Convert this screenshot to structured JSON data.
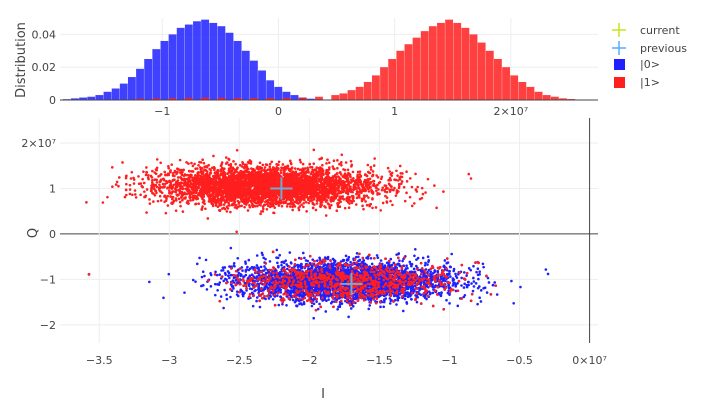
{
  "chart_data": [
    {
      "type": "bar",
      "role": "histogram",
      "ylabel": "Distribution",
      "xlim": [
        -18800000.0,
        27500000.0
      ],
      "ylim": [
        0,
        0.05
      ],
      "yticks": [
        0,
        0.02,
        0.04
      ],
      "ytick_labels": [
        "0",
        "0.02",
        "0.04"
      ],
      "xticks": [
        -10000000.0,
        0,
        10000000.0,
        20000000.0
      ],
      "xtick_labels": [
        "−1",
        "0",
        "1",
        "2×10⁷"
      ],
      "grid": true,
      "series": [
        {
          "name": "|0>",
          "color": "#1f1fff",
          "bins": [
            [
              -18200000.0,
              0.0005
            ],
            [
              -17500000.0,
              0.001
            ],
            [
              -16800000.0,
              0.0015
            ],
            [
              -16100000.0,
              0.002
            ],
            [
              -15400000.0,
              0.003
            ],
            [
              -14700000.0,
              0.005
            ],
            [
              -14000000.0,
              0.007
            ],
            [
              -13300000.0,
              0.01
            ],
            [
              -12600000.0,
              0.014
            ],
            [
              -11900000.0,
              0.019
            ],
            [
              -11200000.0,
              0.025
            ],
            [
              -10500000.0,
              0.031
            ],
            [
              -9800000.0,
              0.036
            ],
            [
              -9100000.0,
              0.04
            ],
            [
              -8400000.0,
              0.044
            ],
            [
              -7700000.0,
              0.046
            ],
            [
              -7000000.0,
              0.048
            ],
            [
              -6300000.0,
              0.049
            ],
            [
              -5600000.0,
              0.047
            ],
            [
              -4900000.0,
              0.045
            ],
            [
              -4200000.0,
              0.041
            ],
            [
              -3500000.0,
              0.036
            ],
            [
              -2800000.0,
              0.03
            ],
            [
              -2100000.0,
              0.024
            ],
            [
              -1400000.0,
              0.018
            ],
            [
              -700000.0,
              0.012
            ],
            [
              0.0,
              0.008
            ],
            [
              700000.0,
              0.005
            ],
            [
              1400000.0,
              0.003
            ],
            [
              2100000.0,
              0.0015
            ],
            [
              2800000.0,
              0.0008
            ],
            [
              3500000.0,
              0.0004
            ],
            [
              4200000.0,
              0.0002
            ]
          ]
        },
        {
          "name": "|1>",
          "color": "#ff1f1f",
          "bins": [
            [
              -11900000.0,
              0.0008
            ],
            [
              -10500000.0,
              0.001
            ],
            [
              -9100000.0,
              0.0012
            ],
            [
              -7700000.0,
              0.0014
            ],
            [
              -6300000.0,
              0.0015
            ],
            [
              -4900000.0,
              0.0014
            ],
            [
              -3500000.0,
              0.0012
            ],
            [
              -2100000.0,
              0.0012
            ],
            [
              -700000.0,
              0.0012
            ],
            [
              700000.0,
              0.0013
            ],
            [
              2100000.0,
              0.0015
            ],
            [
              3500000.0,
              0.002
            ],
            [
              4900000.0,
              0.003
            ],
            [
              5600000.0,
              0.004
            ],
            [
              6300000.0,
              0.006
            ],
            [
              7000000.0,
              0.008
            ],
            [
              7700000.0,
              0.011
            ],
            [
              8400000.0,
              0.015
            ],
            [
              9100000.0,
              0.02
            ],
            [
              9800000.0,
              0.025
            ],
            [
              10500000.0,
              0.03
            ],
            [
              11200000.0,
              0.034
            ],
            [
              11900000.0,
              0.038
            ],
            [
              12600000.0,
              0.042
            ],
            [
              13300000.0,
              0.045
            ],
            [
              14000000.0,
              0.047
            ],
            [
              14700000.0,
              0.049
            ],
            [
              15400000.0,
              0.047
            ],
            [
              16100000.0,
              0.044
            ],
            [
              16800000.0,
              0.04
            ],
            [
              17500000.0,
              0.035
            ],
            [
              18200000.0,
              0.03
            ],
            [
              18900000.0,
              0.025
            ],
            [
              19600000.0,
              0.02
            ],
            [
              20300000.0,
              0.015
            ],
            [
              21000000.0,
              0.011
            ],
            [
              21700000.0,
              0.008
            ],
            [
              22400000.0,
              0.005
            ],
            [
              23100000.0,
              0.003
            ],
            [
              23800000.0,
              0.002
            ],
            [
              24500000.0,
              0.001
            ],
            [
              25200000.0,
              0.0006
            ],
            [
              25900000.0,
              0.0003
            ]
          ]
        }
      ]
    },
    {
      "type": "scatter",
      "xlabel": "I",
      "ylabel": "Q",
      "xlim": [
        -37800000.0,
        600000.0
      ],
      "ylim": [
        -24000000.0,
        25500000.0
      ],
      "xticks": [
        -35000000.0,
        -30000000.0,
        -25000000.0,
        -20000000.0,
        -15000000.0,
        -10000000.0,
        -5000000.0,
        0
      ],
      "xtick_labels": [
        "−3.5",
        "−3",
        "−2.5",
        "−2",
        "−1.5",
        "−1",
        "−0.5",
        "0×10⁷"
      ],
      "yticks": [
        -20000000.0,
        -10000000.0,
        0,
        10000000.0,
        20000000.0
      ],
      "ytick_labels": [
        "−2",
        "−1",
        "0",
        "1",
        "2×10⁷"
      ],
      "grid": true,
      "series": [
        {
          "name": "|0>",
          "color": "#1f1fff",
          "distribution": {
            "center": [
              -17500000.0,
              -10500000.0
            ],
            "spread": [
              3800000.0,
              3800000.0
            ],
            "points": 4200
          }
        },
        {
          "name": "|1>",
          "color": "#ff1f1f",
          "distribution": {
            "center": [
              -23000000.0,
              10500000.0
            ],
            "spread": [
              3800000.0,
              3800000.0
            ],
            "points": 4200
          },
          "secondary": {
            "center": [
              -17500000.0,
              -10500000.0
            ],
            "spread": [
              3800000.0,
              3800000.0
            ],
            "points": 900
          }
        }
      ],
      "markers": [
        {
          "name": "current",
          "color": "#c8e61e",
          "x": -22000000.0,
          "y": 10000000.0
        },
        {
          "name": "previous",
          "color": "#55aaff",
          "x": -22000000.0,
          "y": 10000000.0
        },
        {
          "name": "current",
          "color": "#c8e61e",
          "x": -17000000.0,
          "y": -11000000.0
        },
        {
          "name": "previous",
          "color": "#55aaff",
          "x": -17000000.0,
          "y": -11000000.0
        }
      ]
    }
  ],
  "legend": {
    "position": "top-right",
    "items": [
      {
        "label": "current",
        "symbol": "cross",
        "color": "#c8e61e"
      },
      {
        "label": "previous",
        "symbol": "cross",
        "color": "#55aaff"
      },
      {
        "label": "|0>",
        "symbol": "square",
        "color": "#1f1fff"
      },
      {
        "label": "|1>",
        "symbol": "square",
        "color": "#ff1f1f"
      }
    ]
  }
}
